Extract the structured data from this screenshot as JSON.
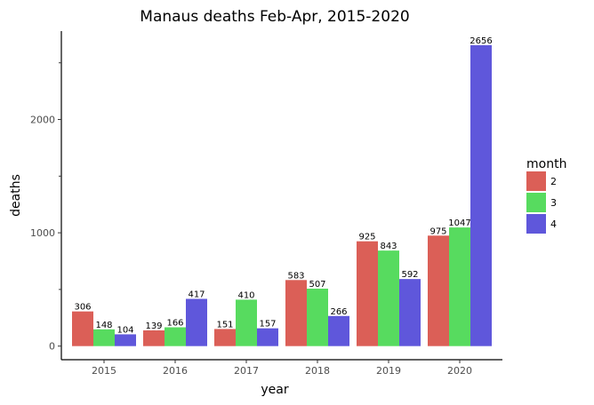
{
  "chart_data": {
    "type": "bar",
    "title": "Manaus deaths Feb-Apr, 2015-2020",
    "xlabel": "year",
    "ylabel": "deaths",
    "categories": [
      "2015",
      "2016",
      "2017",
      "2018",
      "2019",
      "2020"
    ],
    "series": [
      {
        "name": "2",
        "color": "#db5f57",
        "values": [
          306,
          139,
          151,
          583,
          925,
          975
        ]
      },
      {
        "name": "3",
        "color": "#57db5f",
        "values": [
          148,
          166,
          410,
          507,
          843,
          1047
        ]
      },
      {
        "name": "4",
        "color": "#5f57db",
        "values": [
          104,
          417,
          157,
          266,
          592,
          2656
        ]
      }
    ],
    "ylim": [
      -120,
      2780
    ],
    "yticks": [
      0,
      1000,
      2000
    ],
    "ytick_labels": [
      "0",
      "1000",
      "2000"
    ],
    "y_minor_ticks": [
      500,
      1500,
      2500
    ],
    "legend": {
      "title": "month",
      "position": "right"
    },
    "grid": false
  }
}
